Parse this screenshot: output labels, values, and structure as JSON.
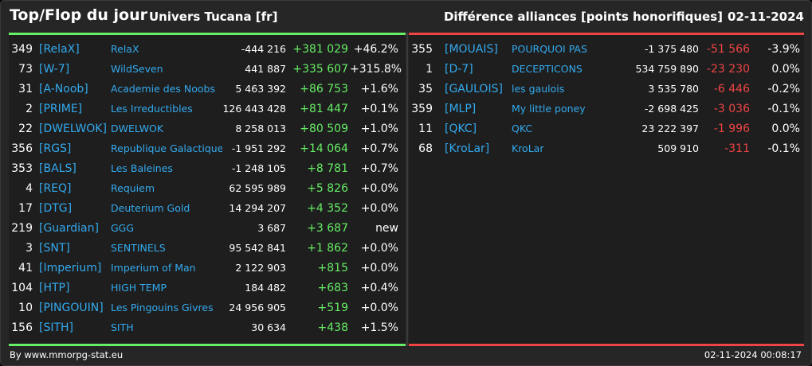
{
  "header": {
    "title": "Top/Flop du jour",
    "universe": "Univers Tucana [fr]",
    "difference": "Différence alliances [points honorifiques]",
    "date": "02-11-2024"
  },
  "top": [
    {
      "rank": "349",
      "tag": "[RelaX]",
      "name": "RelaX",
      "points": "-444 216",
      "delta": "+381 029",
      "pct": "+46.2%"
    },
    {
      "rank": "73",
      "tag": "[W-7]",
      "name": "WildSeven",
      "points": "441 887",
      "delta": "+335 607",
      "pct": "+315.8%"
    },
    {
      "rank": "31",
      "tag": "[A-Noob]",
      "name": "Academie des Noobs",
      "points": "5 463 392",
      "delta": "+86 753",
      "pct": "+1.6%"
    },
    {
      "rank": "2",
      "tag": "[PRIME]",
      "name": "Les Irreductibles",
      "points": "126 443 428",
      "delta": "+81 447",
      "pct": "+0.1%"
    },
    {
      "rank": "22",
      "tag": "[DWELWOK]",
      "name": "DWELWOK",
      "points": "8 258 013",
      "delta": "+80 509",
      "pct": "+1.0%"
    },
    {
      "rank": "356",
      "tag": "[RGS]",
      "name": "Republique Galactique S",
      "points": "-1 951 292",
      "delta": "+14 064",
      "pct": "+0.7%"
    },
    {
      "rank": "353",
      "tag": "[BALS]",
      "name": "Les Baleines",
      "points": "-1 248 105",
      "delta": "+8 781",
      "pct": "+0.7%"
    },
    {
      "rank": "4",
      "tag": "[REQ]",
      "name": "Requiem",
      "points": "62 595 989",
      "delta": "+5 826",
      "pct": "+0.0%"
    },
    {
      "rank": "17",
      "tag": "[DTG]",
      "name": "Deuterium Gold",
      "points": "14 294 207",
      "delta": "+4 352",
      "pct": "+0.0%"
    },
    {
      "rank": "219",
      "tag": "[Guardian]",
      "name": "GGG",
      "points": "3 687",
      "delta": "+3 687",
      "pct": "new"
    },
    {
      "rank": "3",
      "tag": "[SNT]",
      "name": "SENTINELS",
      "points": "95 542 841",
      "delta": "+1 862",
      "pct": "+0.0%"
    },
    {
      "rank": "41",
      "tag": "[Imperium]",
      "name": "Imperium of Man",
      "points": "2 122 903",
      "delta": "+815",
      "pct": "+0.0%"
    },
    {
      "rank": "104",
      "tag": "[HTP]",
      "name": "HIGH TEMP",
      "points": "184 482",
      "delta": "+683",
      "pct": "+0.4%"
    },
    {
      "rank": "10",
      "tag": "[PINGOUIN]",
      "name": "Les Pingouins Givres",
      "points": "24 956 905",
      "delta": "+519",
      "pct": "+0.0%"
    },
    {
      "rank": "156",
      "tag": "[SITH]",
      "name": "SITH",
      "points": "30 634",
      "delta": "+438",
      "pct": "+1.5%"
    }
  ],
  "flop": [
    {
      "rank": "355",
      "tag": "[MOUAIS]",
      "name": "POURQUOI PAS",
      "points": "-1 375 480",
      "delta": "-51 566",
      "pct": "-3.9%"
    },
    {
      "rank": "1",
      "tag": "[D-7]",
      "name": "DECEPTICONS",
      "points": "534 759 890",
      "delta": "-23 230",
      "pct": "0.0%"
    },
    {
      "rank": "35",
      "tag": "[GAULOIS]",
      "name": "les gaulois",
      "points": "3 535 780",
      "delta": "-6 446",
      "pct": "-0.2%"
    },
    {
      "rank": "359",
      "tag": "[MLP]",
      "name": "My little poney",
      "points": "-2 698 425",
      "delta": "-3 036",
      "pct": "-0.1%"
    },
    {
      "rank": "11",
      "tag": "[QKC]",
      "name": "QKC",
      "points": "23 222 397",
      "delta": "-1 996",
      "pct": "0.0%"
    },
    {
      "rank": "68",
      "tag": "[KroLar]",
      "name": "KroLar",
      "points": "509 910",
      "delta": "-311",
      "pct": "-0.1%"
    }
  ],
  "footer": {
    "source": "By www.mmorpg-stat.eu",
    "timestamp": "02-11-2024 00:08:17"
  },
  "colors": {
    "positive": "#66ee66",
    "negative": "#ee4444",
    "tag_link": "#33aaee"
  }
}
